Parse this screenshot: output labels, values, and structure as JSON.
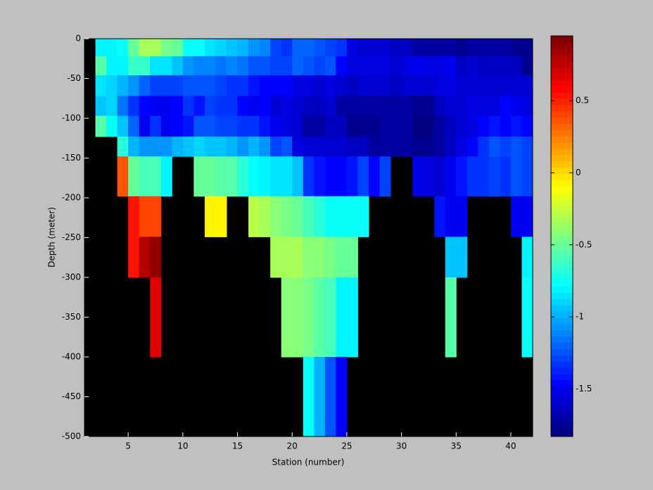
{
  "chart_data": {
    "type": "heatmap",
    "xlabel": "Station (number)",
    "ylabel": "Depth (meter)",
    "xlim": [
      1,
      42
    ],
    "ylim": [
      -500,
      0
    ],
    "xticks": [
      5,
      10,
      15,
      20,
      25,
      30,
      35,
      40
    ],
    "yticks": [
      0,
      -50,
      -100,
      -150,
      -200,
      -250,
      -300,
      -350,
      -400,
      -450,
      -500
    ],
    "axes_color": "#000000",
    "colormap": "jet",
    "x_edges": [
      2,
      3,
      4,
      5,
      6,
      7,
      8,
      9,
      10,
      11,
      12,
      13,
      14,
      15,
      16,
      17,
      18,
      19,
      20,
      21,
      22,
      23,
      24,
      25,
      26,
      27,
      28,
      29,
      30,
      31,
      32,
      33,
      34,
      35,
      36,
      37,
      38,
      39,
      40,
      41,
      42
    ],
    "y_edges": [
      0,
      -22,
      -46,
      -72,
      -97,
      -123,
      -148,
      -198,
      -249,
      -300,
      -400,
      -500
    ],
    "values": [
      [
        -0.8,
        -0.8,
        -0.75,
        -0.5,
        -0.35,
        -0.35,
        -0.45,
        -0.5,
        -0.75,
        -0.75,
        -0.85,
        -0.9,
        -0.95,
        -1.0,
        -1.05,
        -1.1,
        -1.3,
        -1.35,
        -1.2,
        -1.2,
        -1.25,
        -1.3,
        -1.35,
        -1.55,
        -1.6,
        -1.6,
        -1.6,
        -1.65,
        -1.65,
        -1.7,
        -1.7,
        -1.7,
        -1.7,
        -1.75,
        -1.7,
        -1.7,
        -1.7,
        -1.7,
        -1.75,
        -1.75
      ],
      [
        -0.55,
        -0.8,
        -0.8,
        -0.65,
        -0.65,
        -0.85,
        -0.85,
        -0.95,
        -1.05,
        -1.1,
        -1.1,
        -1.15,
        -1.1,
        -1.15,
        -1.25,
        -1.25,
        -1.3,
        -1.3,
        -1.2,
        -1.25,
        -1.3,
        -1.25,
        -1.45,
        -1.55,
        -1.55,
        -1.55,
        -1.55,
        -1.6,
        -1.55,
        -1.5,
        -1.55,
        -1.55,
        -1.5,
        -1.65,
        -1.6,
        -1.65,
        -1.65,
        -1.65,
        -1.65,
        -1.75
      ],
      [
        -0.85,
        -0.9,
        -1.0,
        -1.05,
        -1.2,
        -1.3,
        -1.3,
        -1.3,
        -1.25,
        -1.25,
        -1.25,
        -1.3,
        -1.35,
        -1.35,
        -1.4,
        -1.45,
        -1.45,
        -1.45,
        -1.55,
        -1.55,
        -1.6,
        -1.55,
        -1.6,
        -1.65,
        -1.6,
        -1.6,
        -1.6,
        -1.65,
        -1.6,
        -1.6,
        -1.6,
        -1.55,
        -1.55,
        -1.6,
        -1.6,
        -1.6,
        -1.6,
        -1.6,
        -1.6,
        -1.6
      ],
      [
        -0.95,
        -0.9,
        -1.15,
        -1.35,
        -1.45,
        -1.5,
        -1.5,
        -1.45,
        -1.35,
        -1.4,
        -1.3,
        -1.35,
        -1.35,
        -1.45,
        -1.5,
        -1.45,
        -1.6,
        -1.55,
        -1.6,
        -1.65,
        -1.65,
        -1.6,
        -1.7,
        -1.7,
        -1.7,
        -1.7,
        -1.7,
        -1.7,
        -1.7,
        -1.75,
        -1.75,
        -1.65,
        -1.6,
        -1.6,
        -1.55,
        -1.55,
        -1.55,
        -1.45,
        -1.5,
        -1.55
      ],
      [
        -0.55,
        -0.75,
        -0.95,
        -1.2,
        -1.5,
        -1.35,
        -1.5,
        -1.45,
        -1.4,
        -1.25,
        -1.25,
        -1.3,
        -1.3,
        -1.35,
        -1.35,
        -1.4,
        -1.5,
        -1.55,
        -1.6,
        -1.7,
        -1.7,
        -1.65,
        -1.65,
        -1.75,
        -1.75,
        -1.75,
        -1.7,
        -1.7,
        -1.7,
        -1.8,
        -1.8,
        -1.7,
        -1.65,
        -1.6,
        -1.55,
        -1.45,
        -1.4,
        -1.45,
        -1.4,
        -1.45
      ],
      [
        null,
        null,
        -0.7,
        -1.0,
        -1.05,
        -1.05,
        -1.05,
        -1.0,
        -0.95,
        -0.9,
        -0.95,
        -0.95,
        -1.0,
        -1.05,
        -1.0,
        -1.05,
        -1.3,
        -1.25,
        -1.55,
        -1.6,
        -1.6,
        -1.6,
        -1.6,
        -1.65,
        -1.65,
        -1.7,
        -1.7,
        -1.7,
        -1.7,
        -1.75,
        -1.75,
        -1.7,
        -1.65,
        -1.55,
        -1.45,
        -1.35,
        -1.25,
        -1.3,
        -1.25,
        -1.3
      ],
      [
        null,
        null,
        0.35,
        -0.5,
        -0.6,
        -0.6,
        -0.8,
        null,
        null,
        -0.5,
        -0.5,
        -0.55,
        -0.55,
        -0.7,
        -0.75,
        -0.8,
        -0.85,
        -0.85,
        -0.95,
        -1.35,
        -1.4,
        -1.45,
        -1.45,
        -1.4,
        -1.3,
        -1.45,
        -1.3,
        null,
        null,
        -1.55,
        -1.55,
        -1.6,
        -1.5,
        -1.4,
        -1.35,
        -1.35,
        -1.3,
        -1.35,
        -1.25,
        -1.3
      ],
      [
        null,
        null,
        null,
        0.55,
        0.4,
        0.4,
        null,
        null,
        null,
        null,
        -0.05,
        -0.05,
        null,
        null,
        -0.3,
        -0.35,
        -0.4,
        -0.45,
        -0.5,
        -0.6,
        -0.7,
        -0.75,
        -0.75,
        -0.75,
        -0.75,
        null,
        null,
        null,
        null,
        null,
        null,
        -1.4,
        -1.5,
        -1.5,
        null,
        null,
        null,
        null,
        -1.5,
        -1.5
      ],
      [
        null,
        null,
        null,
        0.55,
        0.8,
        0.9,
        null,
        null,
        null,
        null,
        null,
        null,
        null,
        null,
        null,
        null,
        -0.35,
        -0.35,
        -0.35,
        -0.4,
        -0.4,
        -0.45,
        -0.5,
        -0.5,
        null,
        null,
        null,
        null,
        null,
        null,
        null,
        null,
        -0.95,
        -0.95,
        null,
        null,
        null,
        null,
        null,
        -0.8
      ],
      [
        null,
        null,
        null,
        null,
        null,
        0.65,
        null,
        null,
        null,
        null,
        null,
        null,
        null,
        null,
        null,
        null,
        null,
        -0.4,
        -0.4,
        -0.45,
        -0.55,
        -0.6,
        -0.8,
        -0.8,
        null,
        null,
        null,
        null,
        null,
        null,
        null,
        null,
        -0.55,
        null,
        null,
        null,
        null,
        null,
        null,
        -0.75
      ],
      [
        null,
        null,
        null,
        null,
        null,
        null,
        null,
        null,
        null,
        null,
        null,
        null,
        null,
        null,
        null,
        null,
        null,
        null,
        null,
        -0.75,
        -1.0,
        -1.25,
        -1.45,
        null,
        null,
        null,
        null,
        null,
        null,
        null,
        null,
        null,
        null,
        null,
        null,
        null,
        null,
        null,
        null,
        null
      ]
    ],
    "colorbar": {
      "clim": [
        -1.83,
        0.95
      ],
      "ticks": [
        0.5,
        0,
        -0.5,
        -1,
        -1.5
      ]
    }
  }
}
